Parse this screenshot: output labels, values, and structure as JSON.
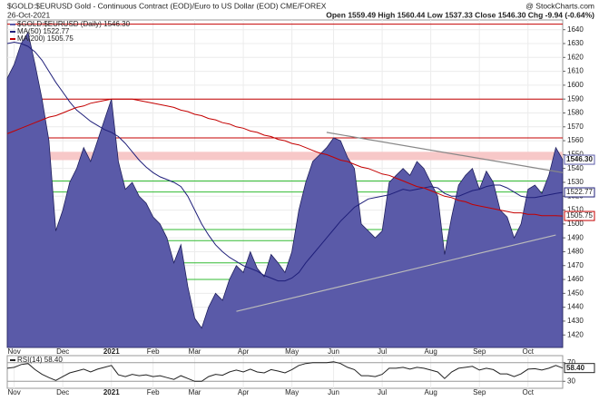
{
  "chart_data": [
    {
      "type": "area",
      "title": "$GOLD:$EURUSD Gold - Continuous Contract (EOD)/Euro to US Dollar (EOD) CME/FOREX",
      "credit": "@ StockCharts.com",
      "date": "26-Oct-2021",
      "quote": "Open 1559.49 High 1560.44 Low 1537.33 Close 1546.30 Chg -9.94 (-0.64%)",
      "categories": [
        null,
        "Nov",
        null,
        null,
        null,
        null,
        null,
        null,
        "Dec",
        null,
        null,
        null,
        null,
        null,
        null,
        "2021",
        null,
        null,
        null,
        null,
        null,
        "Feb",
        null,
        null,
        null,
        null,
        null,
        "Mar",
        null,
        null,
        null,
        null,
        null,
        null,
        "Apr",
        null,
        null,
        null,
        null,
        null,
        null,
        "May",
        null,
        null,
        null,
        null,
        null,
        "Jun",
        null,
        null,
        null,
        null,
        null,
        null,
        "Jul",
        null,
        null,
        null,
        null,
        null,
        null,
        "Aug",
        null,
        null,
        null,
        null,
        null,
        null,
        "Sep",
        null,
        null,
        null,
        null,
        null,
        null,
        "Oct",
        null,
        null,
        null,
        null,
        null
      ],
      "series": [
        {
          "name": "$GOLD:$EURUSD (Daily) 1546.30",
          "color": "#5a5aa8",
          "last_label": "1546.30",
          "values": [
            1605,
            1615,
            1630,
            1638,
            1615,
            1590,
            1560,
            1495,
            1510,
            1530,
            1540,
            1555,
            1545,
            1560,
            1575,
            1590,
            1545,
            1525,
            1530,
            1520,
            1515,
            1505,
            1500,
            1490,
            1472,
            1485,
            1455,
            1432,
            1425,
            1440,
            1450,
            1445,
            1460,
            1470,
            1465,
            1480,
            1468,
            1462,
            1478,
            1472,
            1465,
            1480,
            1510,
            1530,
            1545,
            1550,
            1555,
            1562,
            1560,
            1548,
            1540,
            1500,
            1495,
            1490,
            1495,
            1530,
            1535,
            1540,
            1535,
            1545,
            1540,
            1530,
            1520,
            1478,
            1505,
            1528,
            1535,
            1540,
            1525,
            1538,
            1530,
            1510,
            1505,
            1490,
            1500,
            1525,
            1528,
            1522,
            1535,
            1555,
            1546.3
          ]
        },
        {
          "name": "MA(50) 1522.77",
          "color": "#1f1f7a",
          "last_label": "1522.77",
          "values": [
            1630,
            1631,
            1630,
            1628,
            1624,
            1618,
            1610,
            1602,
            1595,
            1588,
            1582,
            1578,
            1574,
            1571,
            1568,
            1566,
            1563,
            1558,
            1552,
            1546,
            1541,
            1537,
            1534,
            1532,
            1530,
            1527,
            1520,
            1510,
            1500,
            1492,
            1485,
            1480,
            1476,
            1473,
            1470,
            1468,
            1466,
            1463,
            1461,
            1459,
            1459,
            1461,
            1465,
            1472,
            1478,
            1484,
            1490,
            1496,
            1502,
            1507,
            1512,
            1515,
            1518,
            1519,
            1520,
            1521,
            1523,
            1525,
            1524,
            1525,
            1526,
            1527,
            1526,
            1522,
            1520,
            1520,
            1522,
            1524,
            1525,
            1527,
            1528,
            1528,
            1526,
            1523,
            1520,
            1519,
            1519,
            1520,
            1521,
            1522,
            1522.77
          ]
        },
        {
          "name": "MA(200) 1505.75",
          "color": "#c40000",
          "last_label": "1505.75",
          "values": [
            1565,
            1567,
            1569,
            1571,
            1573,
            1575,
            1577,
            1578,
            1580,
            1582,
            1584,
            1585,
            1587,
            1588,
            1589,
            1590,
            1590,
            1590,
            1590,
            1589,
            1588,
            1587,
            1586,
            1585,
            1584,
            1582,
            1581,
            1579,
            1578,
            1576,
            1575,
            1573,
            1572,
            1570,
            1569,
            1567,
            1566,
            1564,
            1563,
            1561,
            1560,
            1558,
            1557,
            1555,
            1553,
            1551,
            1550,
            1548,
            1546,
            1545,
            1543,
            1541,
            1540,
            1538,
            1536,
            1535,
            1533,
            1531,
            1529,
            1527,
            1526,
            1524,
            1522,
            1520,
            1519,
            1517,
            1516,
            1514,
            1513,
            1512,
            1511,
            1510,
            1509,
            1508,
            1508,
            1507,
            1507,
            1506,
            1506,
            1506,
            1505.75
          ]
        }
      ],
      "levels": [
        {
          "value": 1644,
          "color": "#c40000"
        },
        {
          "value": 1590,
          "color": "#c40000"
        },
        {
          "value": 1562,
          "color": "#c40000"
        },
        {
          "value": 1531,
          "color": "#33bb33"
        },
        {
          "value": 1523,
          "color": "#33bb33"
        },
        {
          "value": 1496,
          "color": "#33bb33"
        },
        {
          "value": 1488,
          "color": "#33bb33"
        },
        {
          "value": 1472,
          "color": "#33bb33"
        },
        {
          "value": 1460,
          "color": "#33bb33"
        },
        {
          "value": 1414,
          "color": "#33bb33"
        }
      ],
      "band": {
        "from": 1546,
        "to": 1552,
        "color": "#f7c8c8"
      },
      "trendlines": [
        {
          "from": [
            46,
            1566
          ],
          "to": [
            80,
            1537
          ],
          "color": "#888888"
        },
        {
          "from": [
            33,
            1437
          ],
          "to": [
            79,
            1492
          ],
          "color": "#bbbbbb"
        }
      ],
      "ylim": [
        1411,
        1647
      ],
      "yticks": [
        1420,
        1430,
        1440,
        1450,
        1460,
        1470,
        1480,
        1490,
        1500,
        1510,
        1520,
        1530,
        1540,
        1550,
        1560,
        1570,
        1580,
        1590,
        1600,
        1610,
        1620,
        1630,
        1640
      ],
      "grid": true
    },
    {
      "type": "line",
      "series": [
        {
          "name": "RSI(14) 58.40",
          "color": "#222222",
          "last_label": "58.40",
          "values": [
            58,
            60,
            66,
            68,
            55,
            45,
            38,
            32,
            40,
            48,
            52,
            56,
            50,
            56,
            60,
            64,
            44,
            40,
            45,
            42,
            44,
            40,
            42,
            38,
            34,
            42,
            36,
            30,
            30,
            40,
            45,
            43,
            50,
            54,
            50,
            56,
            50,
            48,
            55,
            52,
            48,
            55,
            64,
            68,
            70,
            70,
            70,
            72,
            68,
            60,
            55,
            42,
            42,
            40,
            45,
            58,
            58,
            60,
            56,
            60,
            58,
            54,
            50,
            36,
            50,
            58,
            60,
            62,
            54,
            58,
            55,
            46,
            46,
            40,
            46,
            56,
            57,
            54,
            58,
            64,
            58.4
          ]
        }
      ],
      "levels": [
        70,
        30
      ],
      "ylim": [
        15,
        85
      ],
      "yticks": [
        30,
        70
      ]
    }
  ]
}
